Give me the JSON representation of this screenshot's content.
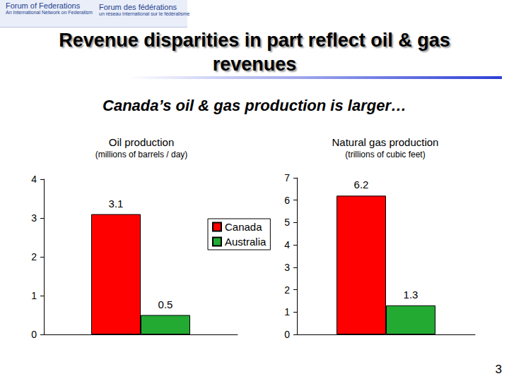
{
  "header": {
    "logo": [
      "Forum of Federations",
      "An International Network on Federalism",
      "Forum des fédérations",
      "un réseau international sur le fédéralisme"
    ],
    "title": "Revenue disparities in part reflect oil & gas revenues",
    "subtitle": "Canada’s oil & gas production is larger…",
    "page": "3"
  },
  "chart_data": [
    {
      "type": "bar",
      "title": "Oil production",
      "subtitle": "(millions of barrels / day)",
      "categories": [
        null
      ],
      "series": [
        {
          "name": "Canada",
          "color": "#ff0000",
          "values": [
            3.1
          ]
        },
        {
          "name": "Australia",
          "color": "#22aa33",
          "values": [
            0.5
          ]
        }
      ],
      "ylim": [
        0,
        4
      ],
      "yticks": [
        0,
        1,
        2,
        3,
        4
      ],
      "data_labels": true,
      "tick_labels": "y",
      "legend": "right"
    },
    {
      "type": "bar",
      "title": "Natural gas production",
      "subtitle": "(trillions of cubic feet)",
      "categories": [
        null
      ],
      "series": [
        {
          "name": "Canada",
          "color": "#ff0000",
          "values": [
            6.2
          ]
        },
        {
          "name": "Australia",
          "color": "#22aa33",
          "values": [
            1.3
          ]
        }
      ],
      "ylim": [
        0,
        7
      ],
      "yticks": [
        0,
        1,
        2,
        3,
        4,
        5,
        6,
        7
      ],
      "data_labels": true,
      "tick_labels": "y"
    }
  ]
}
